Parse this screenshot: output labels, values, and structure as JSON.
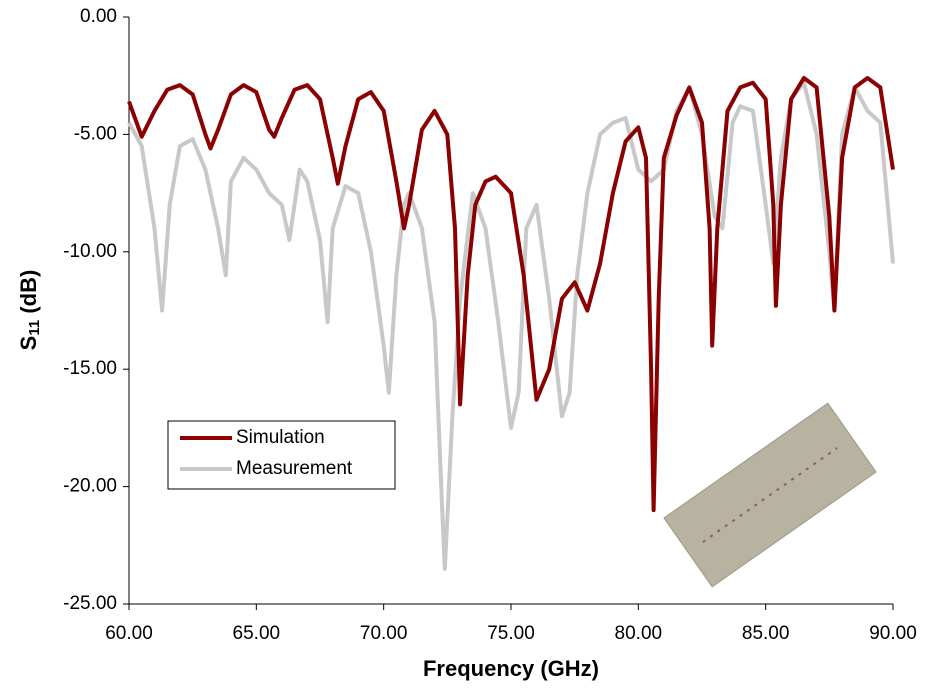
{
  "chart_data": {
    "type": "line",
    "xlabel": "Frequency (GHz)",
    "ylabel_parts": [
      "S",
      "11",
      " (dB)"
    ],
    "xlim": [
      60,
      90
    ],
    "ylim": [
      -25,
      0
    ],
    "xticks": [
      {
        "value": 60,
        "label": "60.00"
      },
      {
        "value": 65,
        "label": "65.00"
      },
      {
        "value": 70,
        "label": "70.00"
      },
      {
        "value": 75,
        "label": "75.00"
      },
      {
        "value": 80,
        "label": "80.00"
      },
      {
        "value": 85,
        "label": "85.00"
      },
      {
        "value": 90,
        "label": "90.00"
      }
    ],
    "yticks": [
      {
        "value": 0,
        "label": "0.00"
      },
      {
        "value": -5,
        "label": "-5.00"
      },
      {
        "value": -10,
        "label": "-10.00"
      },
      {
        "value": -15,
        "label": "-15.00"
      },
      {
        "value": -20,
        "label": "-20.00"
      },
      {
        "value": -25,
        "label": "-25.00"
      }
    ],
    "series": [
      {
        "name": "Simulation",
        "color": "#8b0000",
        "x": [
          60,
          60.5,
          61,
          61.5,
          62,
          62.5,
          63,
          63.2,
          63.5,
          64,
          64.5,
          65,
          65.5,
          65.7,
          66,
          66.5,
          67,
          67.5,
          68,
          68.2,
          68.5,
          69,
          69.5,
          70,
          70.5,
          70.8,
          71,
          71.5,
          72,
          72.5,
          72.8,
          73,
          73.3,
          73.6,
          74,
          74.4,
          75,
          75.5,
          76,
          76.5,
          77,
          77.5,
          78,
          78.5,
          79,
          79.5,
          80,
          80.3,
          80.5,
          80.6,
          80.8,
          81,
          81.5,
          82,
          82.5,
          82.8,
          82.9,
          83.1,
          83.5,
          84,
          84.5,
          85,
          85.3,
          85.4,
          85.6,
          86,
          86.5,
          87,
          87.5,
          87.7,
          88,
          88.5,
          89,
          89.5,
          90
        ],
        "values": [
          -3.6,
          -5.1,
          -4.0,
          -3.1,
          -2.9,
          -3.3,
          -5.0,
          -5.6,
          -4.8,
          -3.3,
          -2.9,
          -3.2,
          -4.8,
          -5.1,
          -4.3,
          -3.1,
          -2.9,
          -3.5,
          -6.0,
          -7.1,
          -5.5,
          -3.5,
          -3.2,
          -4.0,
          -7.0,
          -9.0,
          -8.0,
          -4.8,
          -4.0,
          -5.0,
          -9.0,
          -16.5,
          -11,
          -8.0,
          -7.0,
          -6.8,
          -7.5,
          -11,
          -16.3,
          -15,
          -12,
          -11.3,
          -12.5,
          -10.5,
          -7.5,
          -5.3,
          -4.7,
          -6.0,
          -15,
          -21,
          -12,
          -6,
          -4.2,
          -3.0,
          -4.5,
          -9,
          -14,
          -9,
          -4,
          -3.0,
          -2.8,
          -3.5,
          -8,
          -12.3,
          -8,
          -3.5,
          -2.6,
          -3.0,
          -8.5,
          -12.5,
          -6,
          -3,
          -2.6,
          -3,
          -6.5
        ]
      },
      {
        "name": "Measurement",
        "color": "#c8c8c8",
        "x": [
          60,
          60.5,
          61,
          61.3,
          61.6,
          62,
          62.5,
          63,
          63.5,
          63.8,
          64,
          64.5,
          65,
          65.5,
          66,
          66.3,
          66.7,
          67,
          67.5,
          67.8,
          68,
          68.5,
          69,
          69.5,
          70,
          70.2,
          70.5,
          70.8,
          71,
          71.5,
          72,
          72.3,
          72.4,
          72.7,
          73,
          73.5,
          74,
          74.5,
          75,
          75.3,
          75.6,
          76,
          76.5,
          77,
          77.3,
          77.6,
          78,
          78.5,
          79,
          79.5,
          80,
          80.5,
          81,
          81.5,
          82,
          82.5,
          83,
          83.3,
          83.7,
          84,
          84.5,
          85,
          85.3,
          85.6,
          86,
          86.5,
          87,
          87.5,
          87.7,
          88,
          88.5,
          89,
          89.5,
          90
        ],
        "values": [
          -4.5,
          -5.5,
          -9,
          -12.5,
          -8,
          -5.5,
          -5.2,
          -6.5,
          -9,
          -11,
          -7,
          -6.0,
          -6.5,
          -7.5,
          -8,
          -9.5,
          -6.5,
          -7.0,
          -9.5,
          -13.0,
          -9,
          -7.2,
          -7.5,
          -10,
          -14,
          -16,
          -11,
          -8,
          -7.5,
          -9,
          -13,
          -21,
          -23.5,
          -17,
          -12,
          -7.5,
          -9,
          -13,
          -17.5,
          -16,
          -9,
          -8,
          -12,
          -17,
          -16,
          -11,
          -7.5,
          -5,
          -4.5,
          -4.3,
          -6.5,
          -7,
          -6.5,
          -4,
          -3,
          -5,
          -8.5,
          -9,
          -4.5,
          -3.8,
          -4,
          -8,
          -10.5,
          -6,
          -3.5,
          -2.8,
          -5,
          -10,
          -12.5,
          -5,
          -3,
          -4,
          -4.5,
          -10.5
        ]
      }
    ]
  }
}
